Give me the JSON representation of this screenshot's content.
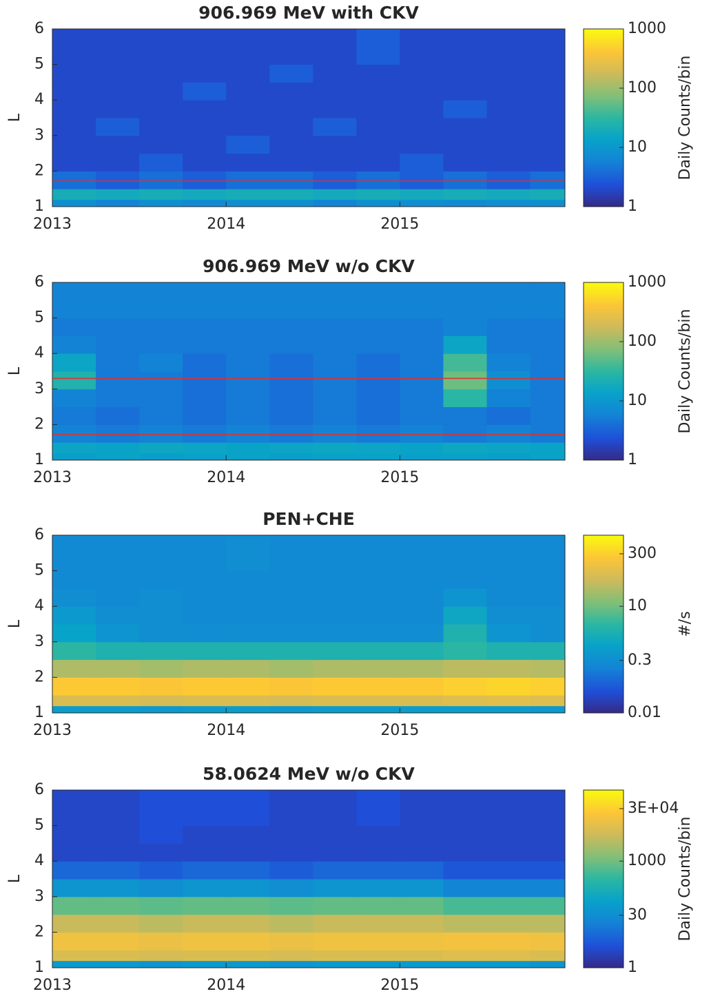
{
  "chart_data": [
    {
      "type": "heatmap",
      "title": "906.969 MeV with CKV",
      "ylabel": "L",
      "x_edges": [
        2013,
        2013.25,
        2013.5,
        2013.75,
        2014,
        2014.25,
        2014.5,
        2014.75,
        2015,
        2015.25,
        2015.5,
        2015.75,
        2015.95
      ],
      "y_edges": [
        1,
        1.2,
        1.5,
        2,
        2.5,
        3,
        3.5,
        4,
        4.5,
        5,
        6
      ],
      "values": [
        [
          8,
          6,
          8,
          7,
          8,
          8,
          6,
          8,
          8,
          7,
          8,
          8
        ],
        [
          20,
          18,
          20,
          18,
          20,
          20,
          18,
          20,
          18,
          20,
          18,
          20
        ],
        [
          4,
          3,
          4,
          3,
          4,
          4,
          3,
          4,
          3,
          4,
          3,
          4
        ],
        [
          2,
          2,
          3,
          2,
          2,
          2,
          2,
          2,
          3,
          2,
          2,
          2
        ],
        [
          2,
          2,
          2,
          2,
          3,
          2,
          2,
          2,
          2,
          2,
          2,
          2
        ],
        [
          2,
          3,
          2,
          2,
          2,
          2,
          3,
          2,
          2,
          2,
          2,
          2
        ],
        [
          2,
          2,
          2,
          2,
          2,
          2,
          2,
          2,
          2,
          3,
          2,
          2
        ],
        [
          2,
          2,
          2,
          3,
          2,
          2,
          2,
          2,
          2,
          2,
          2,
          2
        ],
        [
          2,
          2,
          2,
          2,
          2,
          3,
          2,
          2,
          2,
          2,
          2,
          2
        ],
        [
          2,
          2,
          2,
          2,
          2,
          2,
          2,
          3,
          2,
          2,
          2,
          2
        ]
      ],
      "xlim": [
        2013,
        2015.95
      ],
      "ylim": [
        1,
        6
      ],
      "xticks": [
        2013,
        2014,
        2015
      ],
      "yticks": [
        1,
        2,
        3,
        4,
        5,
        6
      ],
      "reference_lines": [
        {
          "y": 1.72,
          "color": "#e0302a"
        }
      ],
      "colorbar": {
        "label": "Daily Counts/bin",
        "scale": "log",
        "clim": [
          1,
          1000
        ],
        "ticks": [
          1,
          10,
          100,
          1000
        ]
      }
    },
    {
      "type": "heatmap",
      "title": "906.969 MeV w/o CKV",
      "ylabel": "L",
      "x_edges": [
        2013,
        2013.25,
        2013.5,
        2013.75,
        2014,
        2014.25,
        2014.5,
        2014.75,
        2015,
        2015.25,
        2015.5,
        2015.75,
        2015.95
      ],
      "y_edges": [
        1,
        1.2,
        1.5,
        2,
        2.5,
        3,
        3.5,
        4,
        4.5,
        5,
        6
      ],
      "values": [
        [
          12,
          14,
          12,
          13,
          14,
          12,
          13,
          14,
          12,
          13,
          12,
          14
        ],
        [
          15,
          14,
          16,
          15,
          14,
          15,
          16,
          15,
          14,
          16,
          15,
          14
        ],
        [
          6,
          5,
          6,
          5,
          6,
          5,
          6,
          5,
          6,
          5,
          6,
          5
        ],
        [
          5,
          4,
          5,
          4,
          5,
          4,
          5,
          4,
          5,
          5,
          4,
          5
        ],
        [
          6,
          5,
          5,
          4,
          5,
          4,
          5,
          4,
          5,
          30,
          6,
          5
        ],
        [
          25,
          5,
          5,
          4,
          5,
          4,
          5,
          4,
          5,
          60,
          8,
          5
        ],
        [
          15,
          5,
          6,
          4,
          5,
          4,
          5,
          4,
          5,
          40,
          6,
          5
        ],
        [
          6,
          5,
          5,
          5,
          5,
          5,
          5,
          5,
          5,
          15,
          5,
          5
        ],
        [
          5,
          5,
          5,
          5,
          5,
          5,
          5,
          5,
          5,
          6,
          5,
          5
        ],
        [
          6,
          6,
          6,
          6,
          6,
          6,
          6,
          6,
          6,
          6,
          6,
          6
        ]
      ],
      "xlim": [
        2013,
        2015.95
      ],
      "ylim": [
        1,
        6
      ],
      "xticks": [
        2013,
        2014,
        2015
      ],
      "yticks": [
        1,
        2,
        3,
        4,
        5,
        6
      ],
      "reference_lines": [
        {
          "y": 1.72,
          "color": "#e0302a"
        },
        {
          "y": 3.3,
          "color": "#e0302a"
        }
      ],
      "colorbar": {
        "label": "Daily Counts/bin",
        "scale": "log",
        "clim": [
          1,
          1000
        ],
        "ticks": [
          1,
          10,
          100,
          1000
        ]
      }
    },
    {
      "type": "heatmap",
      "title": "PEN+CHE",
      "ylabel": "L",
      "x_edges": [
        2013,
        2013.25,
        2013.5,
        2013.75,
        2014,
        2014.25,
        2014.5,
        2014.75,
        2015,
        2015.25,
        2015.5,
        2015.75,
        2015.95
      ],
      "y_edges": [
        1,
        1.2,
        1.5,
        2,
        2.5,
        3,
        3.5,
        4,
        4.5,
        5,
        6
      ],
      "values": [
        [
          0.6,
          0.6,
          0.5,
          0.6,
          0.6,
          0.5,
          0.6,
          0.6,
          0.6,
          0.6,
          0.6,
          0.5
        ],
        [
          80,
          80,
          70,
          80,
          80,
          70,
          80,
          80,
          80,
          90,
          100,
          90
        ],
        [
          250,
          250,
          220,
          250,
          250,
          220,
          250,
          250,
          250,
          300,
          350,
          300
        ],
        [
          30,
          30,
          25,
          30,
          30,
          25,
          30,
          30,
          30,
          40,
          40,
          35
        ],
        [
          3,
          2,
          2,
          2,
          2,
          2,
          2,
          2,
          2,
          3,
          2,
          2
        ],
        [
          0.8,
          0.4,
          0.3,
          0.3,
          0.3,
          0.3,
          0.3,
          0.3,
          0.3,
          2,
          0.4,
          0.3
        ],
        [
          0.5,
          0.3,
          0.3,
          0.25,
          0.25,
          0.25,
          0.25,
          0.25,
          0.25,
          1,
          0.3,
          0.3
        ],
        [
          0.3,
          0.25,
          0.3,
          0.25,
          0.25,
          0.25,
          0.25,
          0.25,
          0.25,
          0.4,
          0.25,
          0.25
        ],
        [
          0.25,
          0.25,
          0.25,
          0.25,
          0.25,
          0.25,
          0.25,
          0.25,
          0.25,
          0.25,
          0.25,
          0.25
        ],
        [
          0.25,
          0.25,
          0.25,
          0.25,
          0.3,
          0.25,
          0.25,
          0.25,
          0.25,
          0.25,
          0.25,
          0.25
        ]
      ],
      "xlim": [
        2013,
        2015.95
      ],
      "ylim": [
        1,
        6
      ],
      "xticks": [
        2013,
        2014,
        2015
      ],
      "yticks": [
        1,
        2,
        3,
        4,
        5,
        6
      ],
      "colorbar": {
        "label": "#/s",
        "scale": "log",
        "clim": [
          0.01,
          1000
        ],
        "ticks": [
          0.01,
          0.3,
          10,
          300
        ]
      }
    },
    {
      "type": "heatmap",
      "title": "58.0624 MeV w/o CKV",
      "ylabel": "L",
      "x_edges": [
        2013,
        2013.25,
        2013.5,
        2013.75,
        2014,
        2014.25,
        2014.5,
        2014.75,
        2015,
        2015.25,
        2015.5,
        2015.75,
        2015.95
      ],
      "y_edges": [
        1,
        1.2,
        1.5,
        2,
        2.5,
        3,
        3.5,
        4,
        4.5,
        5,
        6
      ],
      "values": [
        [
          50,
          50,
          40,
          50,
          50,
          40,
          50,
          50,
          50,
          50,
          50,
          40
        ],
        [
          8000,
          8000,
          7000,
          8000,
          8000,
          7000,
          8000,
          8000,
          8000,
          9000,
          9000,
          8000
        ],
        [
          15000,
          15000,
          13000,
          15000,
          15000,
          13000,
          15000,
          15000,
          15000,
          17000,
          17000,
          15000
        ],
        [
          5000,
          5000,
          4000,
          5000,
          5000,
          4000,
          5000,
          5000,
          5000,
          4000,
          4000,
          4000
        ],
        [
          800,
          800,
          700,
          800,
          800,
          700,
          800,
          800,
          800,
          500,
          500,
          500
        ],
        [
          40,
          40,
          30,
          40,
          40,
          30,
          40,
          40,
          40,
          20,
          20,
          20
        ],
        [
          8,
          8,
          6,
          8,
          8,
          6,
          8,
          8,
          8,
          5,
          5,
          5
        ],
        [
          3,
          3,
          3,
          3,
          3,
          3,
          3,
          3,
          3,
          3,
          3,
          3
        ],
        [
          3,
          3,
          4,
          3,
          3,
          3,
          3,
          3,
          3,
          3,
          3,
          3
        ],
        [
          3,
          3,
          4,
          4,
          4,
          3,
          3,
          4,
          3,
          3,
          3,
          3
        ]
      ],
      "xlim": [
        2013,
        2015.95
      ],
      "ylim": [
        1,
        6
      ],
      "xticks": [
        2013,
        2014,
        2015
      ],
      "yticks": [
        1,
        2,
        3,
        4,
        5,
        6
      ],
      "colorbar": {
        "label": "Daily Counts/bin",
        "scale": "log",
        "clim": [
          1,
          100000
        ],
        "ticks": [
          1,
          30,
          1000,
          {
            "value": 30000,
            "label": "3E+04"
          }
        ]
      }
    }
  ]
}
